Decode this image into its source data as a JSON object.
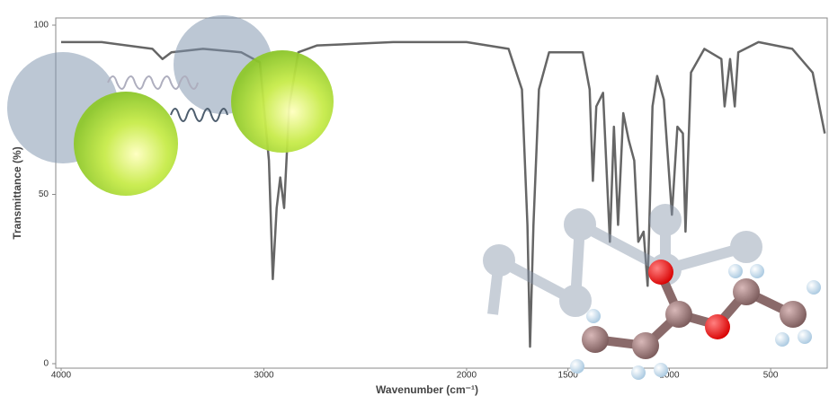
{
  "chart_data": {
    "type": "line",
    "x_label": "Wavenumber (cm⁻¹)",
    "y_label": "Transmittance (%)",
    "xlim": [
      4000,
      230
    ],
    "ylim": [
      0,
      100
    ],
    "xticks": [
      4000,
      3000,
      2000,
      1500,
      1000,
      500
    ],
    "yticks": [
      0,
      50,
      100
    ],
    "reverse_x": true,
    "x": [
      4000,
      3800,
      3550,
      3500,
      3456,
      3300,
      3112,
      3020,
      2975,
      2956,
      2937,
      2919,
      2900,
      2875,
      2830,
      2737,
      2362,
      2000,
      1793,
      1727,
      1700,
      1687,
      1670,
      1643,
      1593,
      1427,
      1393,
      1377,
      1360,
      1327,
      1293,
      1273,
      1253,
      1227,
      1200,
      1173,
      1153,
      1127,
      1107,
      1083,
      1060,
      1027,
      987,
      960,
      933,
      920,
      893,
      827,
      743,
      727,
      700,
      677,
      660,
      560,
      393,
      293,
      233
    ],
    "series": [
      {
        "name": "Transmittance",
        "color": "#666666",
        "values": [
          95,
          95,
          93,
          90,
          92,
          93,
          92,
          89,
          60,
          25,
          46,
          55,
          46,
          76,
          92,
          94,
          95,
          95,
          93,
          81,
          41,
          5,
          41,
          81,
          92,
          92,
          81,
          54,
          76,
          80,
          36,
          70,
          41,
          74,
          66,
          60,
          36,
          39,
          23,
          76,
          85,
          78,
          44,
          70,
          68,
          39,
          86,
          93,
          90,
          76,
          90,
          76,
          92,
          95,
          93,
          86,
          68
        ]
      }
    ]
  }
}
